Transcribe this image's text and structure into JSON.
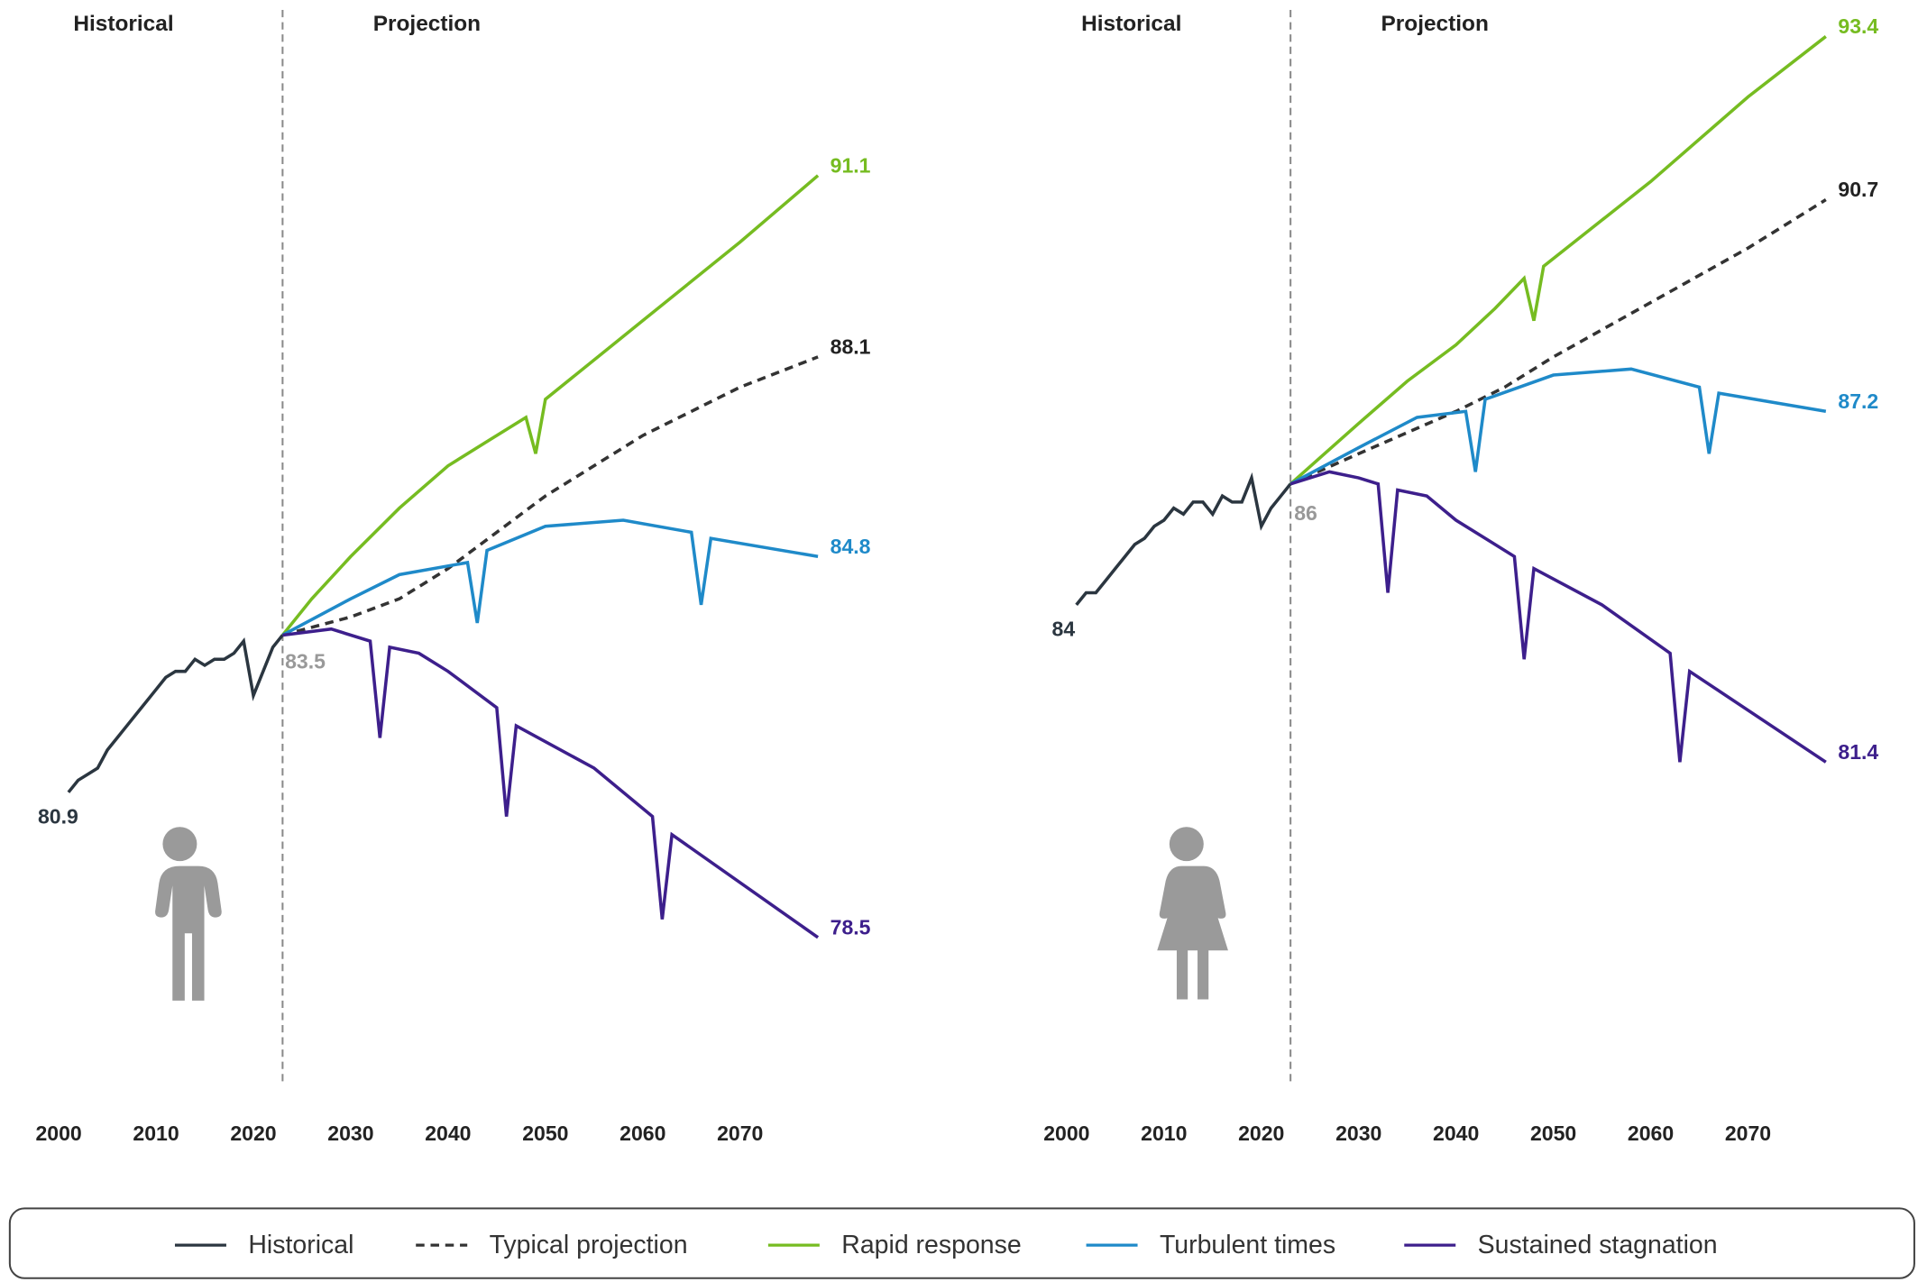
{
  "chart_data": [
    {
      "type": "line",
      "region_labels": [
        "Historical",
        "Projection"
      ],
      "divider": 2023,
      "xlim": [
        2000,
        2080
      ],
      "xticks": [
        2000,
        2010,
        2020,
        2030,
        2040,
        2050,
        2060,
        2070
      ],
      "ylim": [
        76,
        94
      ],
      "series": [
        {
          "name": "Historical",
          "color": "#2b3640",
          "dashed": false,
          "x": [
            2001,
            2002,
            2003,
            2004,
            2005,
            2006,
            2007,
            2008,
            2009,
            2010,
            2011,
            2012,
            2013,
            2014,
            2015,
            2016,
            2017,
            2018,
            2019,
            2020,
            2021,
            2022,
            2023
          ],
          "values": [
            80.9,
            81.1,
            81.2,
            81.3,
            81.6,
            81.8,
            82.0,
            82.2,
            82.4,
            82.6,
            82.8,
            82.9,
            82.9,
            83.1,
            83.0,
            83.1,
            83.1,
            83.2,
            83.4,
            82.5,
            82.9,
            83.3,
            83.5
          ]
        },
        {
          "name": "Typical projection",
          "color": "#333333",
          "dashed": true,
          "x": [
            2023,
            2030,
            2035,
            2040,
            2045,
            2050,
            2055,
            2060,
            2065,
            2070,
            2078
          ],
          "values": [
            83.5,
            83.8,
            84.1,
            84.6,
            85.2,
            85.8,
            86.3,
            86.8,
            87.2,
            87.6,
            88.1
          ]
        },
        {
          "name": "Rapid response",
          "color": "#76bc21",
          "dashed": false,
          "x": [
            2023,
            2026,
            2030,
            2035,
            2040,
            2044,
            2048,
            2049,
            2050,
            2060,
            2070,
            2078
          ],
          "values": [
            83.5,
            84.1,
            84.8,
            85.6,
            86.3,
            86.7,
            87.1,
            86.5,
            87.4,
            88.7,
            90.0,
            91.1
          ]
        },
        {
          "name": "Turbulent times",
          "color": "#1f8ac9",
          "dashed": false,
          "x": [
            2023,
            2030,
            2035,
            2042,
            2043,
            2044,
            2050,
            2058,
            2065,
            2066,
            2067,
            2078
          ],
          "values": [
            83.5,
            84.1,
            84.5,
            84.7,
            83.7,
            84.9,
            85.3,
            85.4,
            85.2,
            84.0,
            85.1,
            84.8
          ]
        },
        {
          "name": "Sustained stagnation",
          "color": "#3d1f8c",
          "dashed": false,
          "x": [
            2023,
            2028,
            2032,
            2033,
            2034,
            2037,
            2040,
            2045,
            2046,
            2047,
            2055,
            2061,
            2062,
            2063,
            2078
          ],
          "values": [
            83.5,
            83.6,
            83.4,
            81.8,
            83.3,
            83.2,
            82.9,
            82.3,
            80.5,
            82.0,
            81.3,
            80.5,
            78.8,
            80.2,
            78.5
          ]
        }
      ]
    },
    {
      "type": "line",
      "region_labels": [
        "Historical",
        "Projection"
      ],
      "divider": 2023,
      "xlim": [
        2000,
        2080
      ],
      "xticks": [
        2000,
        2010,
        2020,
        2030,
        2040,
        2050,
        2060,
        2070
      ],
      "ylim": [
        76,
        94
      ],
      "series": [
        {
          "color": "#2b3640",
          "dashed": false,
          "x": [
            2001,
            2002,
            2003,
            2004,
            2005,
            2006,
            2007,
            2008,
            2009,
            2010,
            2011,
            2012,
            2013,
            2014,
            2015,
            2016,
            2017,
            2018,
            2019,
            2020,
            2021,
            2022,
            2023
          ],
          "values": [
            84.0,
            84.2,
            84.2,
            84.4,
            84.6,
            84.8,
            85.0,
            85.1,
            85.3,
            85.4,
            85.6,
            85.5,
            85.7,
            85.7,
            85.5,
            85.8,
            85.7,
            85.7,
            86.1,
            85.3,
            85.6,
            85.8,
            86.0
          ]
        },
        {
          "color": "#333333",
          "dashed": true,
          "x": [
            2023,
            2030,
            2040,
            2045,
            2050,
            2060,
            2070,
            2078
          ],
          "values": [
            86.0,
            86.5,
            87.2,
            87.6,
            88.1,
            89.0,
            89.9,
            90.7
          ]
        },
        {
          "color": "#76bc21",
          "dashed": false,
          "x": [
            2023,
            2030,
            2035,
            2040,
            2044,
            2047,
            2048,
            2049,
            2060,
            2070,
            2078
          ],
          "values": [
            86.0,
            87.0,
            87.7,
            88.3,
            88.9,
            89.4,
            88.7,
            89.6,
            91.0,
            92.4,
            93.4
          ]
        },
        {
          "color": "#1f8ac9",
          "dashed": false,
          "x": [
            2023,
            2030,
            2036,
            2041,
            2042,
            2043,
            2050,
            2058,
            2065,
            2066,
            2067,
            2078
          ],
          "values": [
            86.0,
            86.6,
            87.1,
            87.2,
            86.2,
            87.4,
            87.8,
            87.9,
            87.6,
            86.5,
            87.5,
            87.2
          ]
        },
        {
          "color": "#3d1f8c",
          "dashed": false,
          "x": [
            2023,
            2027,
            2030,
            2032,
            2033,
            2034,
            2037,
            2040,
            2046,
            2047,
            2048,
            2055,
            2062,
            2063,
            2064,
            2078
          ],
          "values": [
            86.0,
            86.2,
            86.1,
            86.0,
            84.2,
            85.9,
            85.8,
            85.4,
            84.8,
            83.1,
            84.6,
            84.0,
            83.2,
            81.4,
            82.9,
            81.4
          ]
        }
      ]
    }
  ]
}
